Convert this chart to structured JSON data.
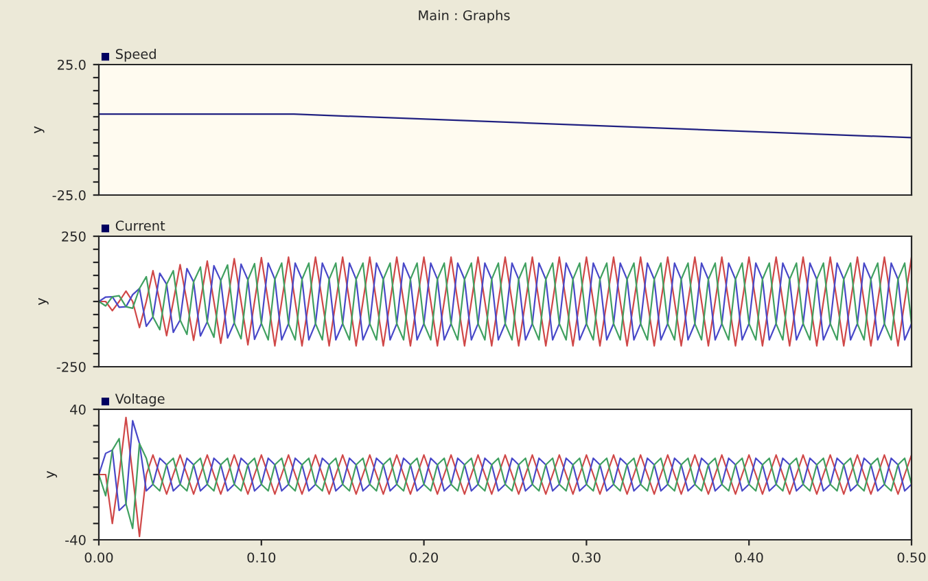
{
  "chart_data": [
    {
      "type": "line",
      "annotations": [
        "Main : Graphs"
      ],
      "title": "Speed",
      "ylabel": "y",
      "xlim": [
        0,
        0.5
      ],
      "ylim": [
        -25,
        25
      ],
      "yticks": [
        {
          "value": -25,
          "label": "-25.0"
        },
        {
          "value": -20,
          "label": null
        },
        {
          "value": -15,
          "label": null
        },
        {
          "value": -10,
          "label": null
        },
        {
          "value": -5,
          "label": null
        },
        {
          "value": 0,
          "label": null
        },
        {
          "value": 5,
          "label": null
        },
        {
          "value": 10,
          "label": null
        },
        {
          "value": 15,
          "label": null
        },
        {
          "value": 20,
          "label": null
        },
        {
          "value": 25,
          "label": "25.0"
        }
      ],
      "tick_labels": "y",
      "x": [
        0,
        0.12,
        0.5
      ],
      "series": [
        {
          "color": "#202080",
          "values": [
            6,
            6,
            -3
          ]
        }
      ]
    },
    {
      "type": "line",
      "title": "Current",
      "ylabel": "y",
      "xlim": [
        0,
        0.5
      ],
      "ylim": [
        -250,
        250
      ],
      "yticks": [
        -250,
        {
          "value": -200,
          "label": null
        },
        {
          "value": -150,
          "label": null
        },
        {
          "value": -100,
          "label": null
        },
        {
          "value": -50,
          "label": null
        },
        {
          "value": 0,
          "label": null
        },
        {
          "value": 50,
          "label": null
        },
        {
          "value": 100,
          "label": null
        },
        {
          "value": 150,
          "label": null
        },
        {
          "value": 200,
          "label": null
        },
        250
      ],
      "tick_labels": "y",
      "x": [
        0,
        0.0042,
        0.0083,
        0.0125,
        0.0167,
        0.0208,
        0.025,
        0.0292,
        0.0333,
        0.0375,
        0.0417,
        0.0458,
        0.05,
        0.0542,
        0.0583,
        0.0625,
        0.0667,
        0.0708,
        0.075,
        0.0792,
        0.0833,
        0.0875,
        0.0917,
        0.0958,
        0.1,
        0.1042,
        0.1083,
        0.1125,
        0.1167,
        0.1208,
        0.125,
        0.1292,
        0.1333,
        0.1375,
        0.1417,
        0.1458,
        0.15,
        0.1542,
        0.1583,
        0.1625,
        0.1667,
        0.1708,
        0.175,
        0.1792,
        0.1833,
        0.1875,
        0.1917,
        0.1958,
        0.2,
        0.2042,
        0.2083,
        0.2125,
        0.2167,
        0.2208,
        0.225,
        0.2292,
        0.2333,
        0.2375,
        0.2417,
        0.2458,
        0.25,
        0.2542,
        0.2583,
        0.2625,
        0.2667,
        0.2708,
        0.275,
        0.2792,
        0.2833,
        0.2875,
        0.2917,
        0.2958,
        0.3,
        0.3042,
        0.3083,
        0.3125,
        0.3167,
        0.3208,
        0.325,
        0.3292,
        0.3333,
        0.3375,
        0.3417,
        0.3458,
        0.35,
        0.3542,
        0.3583,
        0.3625,
        0.3667,
        0.3708,
        0.375,
        0.3792,
        0.3833,
        0.3875,
        0.3917,
        0.3958,
        0.4,
        0.4042,
        0.4083,
        0.4125,
        0.4167,
        0.4208,
        0.425,
        0.4292,
        0.4333,
        0.4375,
        0.4417,
        0.4458,
        0.45,
        0.4542,
        0.4583,
        0.4625,
        0.4667,
        0.4708,
        0.475,
        0.4792,
        0.4833,
        0.4875,
        0.4917,
        0.4958,
        0.5
      ],
      "series": [
        {
          "color": "#d04848",
          "values": [
            0,
            0,
            -35,
            0,
            40,
            0,
            -100,
            0,
            118,
            0,
            -131,
            0,
            141,
            0,
            -149,
            0,
            155,
            0,
            -160,
            0,
            164,
            0,
            -166,
            0,
            168,
            0,
            -170,
            0,
            170,
            0,
            -170,
            0,
            170,
            0,
            -170,
            0,
            170,
            0,
            -170,
            0,
            170,
            0,
            -170,
            0,
            170,
            0,
            -170,
            0,
            170,
            0,
            -170,
            0,
            170,
            0,
            -170,
            0,
            170,
            0,
            -170,
            0,
            170,
            0,
            -170,
            0,
            170,
            0,
            -170,
            0,
            170,
            0,
            -170,
            0,
            170,
            0,
            -170,
            0,
            170,
            0,
            -170,
            0,
            170,
            0,
            -170,
            0,
            170,
            0,
            -170,
            0,
            170,
            0,
            -170,
            0,
            170,
            0,
            -170,
            0,
            170,
            0,
            -170,
            0,
            170,
            0,
            -170,
            0,
            170,
            0,
            -170,
            0,
            170,
            0,
            -170,
            0,
            170,
            0,
            -170,
            0,
            170,
            0,
            -170,
            0,
            170
          ]
        },
        {
          "color": "#4848c8",
          "values": [
            0,
            17,
            18,
            -22,
            -20,
            26,
            50,
            -95,
            -59,
            108,
            66,
            -118,
            -71,
            126,
            75,
            -132,
            -78,
            137,
            80,
            -140,
            -82,
            143,
            83,
            -145,
            -84,
            147,
            85,
            -147,
            -85,
            147,
            85,
            -147,
            -85,
            147,
            85,
            -147,
            -85,
            147,
            85,
            -147,
            -85,
            147,
            85,
            -147,
            -85,
            147,
            85,
            -147,
            -85,
            147,
            85,
            -147,
            -85,
            147,
            85,
            -147,
            -85,
            147,
            85,
            -147,
            -85,
            147,
            85,
            -147,
            -85,
            147,
            85,
            -147,
            -85,
            147,
            85,
            -147,
            -85,
            147,
            85,
            -147,
            -85,
            147,
            85,
            -147,
            -85,
            147,
            85,
            -147,
            -85,
            147,
            85,
            -147,
            -85,
            147,
            85,
            -147,
            -85,
            147,
            85,
            -147,
            -85,
            147,
            85,
            -147,
            -85,
            147,
            85,
            -147,
            -85,
            147,
            85,
            -147,
            -85,
            147,
            85,
            -147,
            -85,
            147,
            85,
            -147,
            -85,
            147,
            85,
            -147,
            -85
          ]
        },
        {
          "color": "#40a060",
          "values": [
            0,
            -17,
            18,
            22,
            -20,
            -26,
            50,
            95,
            -59,
            -108,
            66,
            118,
            -71,
            -126,
            75,
            132,
            -78,
            -137,
            80,
            140,
            -82,
            -143,
            83,
            145,
            -84,
            -147,
            85,
            147,
            -85,
            -147,
            85,
            147,
            -85,
            -147,
            85,
            147,
            -85,
            -147,
            85,
            147,
            -85,
            -147,
            85,
            147,
            -85,
            -147,
            85,
            147,
            -85,
            -147,
            85,
            147,
            -85,
            -147,
            85,
            147,
            -85,
            -147,
            85,
            147,
            -85,
            -147,
            85,
            147,
            -85,
            -147,
            85,
            147,
            -85,
            -147,
            85,
            147,
            -85,
            -147,
            85,
            147,
            -85,
            -147,
            85,
            147,
            -85,
            -147,
            85,
            147,
            -85,
            -147,
            85,
            147,
            -85,
            -147,
            85,
            147,
            -85,
            -147,
            85,
            147,
            -85,
            -147,
            85,
            147,
            -85,
            -147,
            85,
            147,
            -85,
            -147,
            85,
            147,
            -85,
            -147,
            85,
            147,
            -85,
            -147,
            85,
            147,
            -85,
            -147,
            85,
            147,
            -85
          ]
        }
      ]
    },
    {
      "type": "line",
      "title": "Voltage",
      "ylabel": "y",
      "xlim": [
        0,
        0.5
      ],
      "xticks": [
        {
          "value": 0,
          "label": "0.00"
        },
        {
          "value": 0.1,
          "label": "0.10"
        },
        {
          "value": 0.2,
          "label": "0.20"
        },
        {
          "value": 0.3,
          "label": "0.30"
        },
        {
          "value": 0.4,
          "label": "0.40"
        },
        {
          "value": 0.5,
          "label": "0.50"
        }
      ],
      "ylim": [
        -40,
        40
      ],
      "yticks": [
        -40,
        {
          "value": -30,
          "label": null
        },
        {
          "value": -20,
          "label": null
        },
        {
          "value": -10,
          "label": null
        },
        {
          "value": 0,
          "label": null
        },
        {
          "value": 10,
          "label": null
        },
        {
          "value": 20,
          "label": null
        },
        {
          "value": 30,
          "label": null
        },
        40
      ],
      "x": [
        0,
        0.0042,
        0.0083,
        0.0125,
        0.0167,
        0.0208,
        0.025,
        0.0292,
        0.0333,
        0.0375,
        0.0417,
        0.0458,
        0.05,
        0.0542,
        0.0583,
        0.0625,
        0.0667,
        0.0708,
        0.075,
        0.0792,
        0.0833,
        0.0875,
        0.0917,
        0.0958,
        0.1,
        0.1042,
        0.1083,
        0.1125,
        0.1167,
        0.1208,
        0.125,
        0.1292,
        0.1333,
        0.1375,
        0.1417,
        0.1458,
        0.15,
        0.1542,
        0.1583,
        0.1625,
        0.1667,
        0.1708,
        0.175,
        0.1792,
        0.1833,
        0.1875,
        0.1917,
        0.1958,
        0.2,
        0.2042,
        0.2083,
        0.2125,
        0.2167,
        0.2208,
        0.225,
        0.2292,
        0.2333,
        0.2375,
        0.2417,
        0.2458,
        0.25,
        0.2542,
        0.2583,
        0.2625,
        0.2667,
        0.2708,
        0.275,
        0.2792,
        0.2833,
        0.2875,
        0.2917,
        0.2958,
        0.3,
        0.3042,
        0.3083,
        0.3125,
        0.3167,
        0.3208,
        0.325,
        0.3292,
        0.3333,
        0.3375,
        0.3417,
        0.3458,
        0.35,
        0.3542,
        0.3583,
        0.3625,
        0.3667,
        0.3708,
        0.375,
        0.3792,
        0.3833,
        0.3875,
        0.3917,
        0.3958,
        0.4,
        0.4042,
        0.4083,
        0.4125,
        0.4167,
        0.4208,
        0.425,
        0.4292,
        0.4333,
        0.4375,
        0.4417,
        0.4458,
        0.45,
        0.4542,
        0.4583,
        0.4625,
        0.4667,
        0.4708,
        0.475,
        0.4792,
        0.4833,
        0.4875,
        0.4917,
        0.4958,
        0.5
      ],
      "series": [
        {
          "color": "#d04848",
          "values": [
            0,
            0,
            -30,
            0,
            35,
            0,
            -38,
            0,
            12,
            0,
            -12,
            0,
            12,
            0,
            -12,
            0,
            12,
            0,
            -12,
            0,
            12,
            0,
            -12,
            0,
            12,
            0,
            -12,
            0,
            12,
            0,
            -12,
            0,
            12,
            0,
            -12,
            0,
            12,
            0,
            -12,
            0,
            12,
            0,
            -12,
            0,
            12,
            0,
            -12,
            0,
            12,
            0,
            -12,
            0,
            12,
            0,
            -12,
            0,
            12,
            0,
            -12,
            0,
            12,
            0,
            -12,
            0,
            12,
            0,
            -12,
            0,
            12,
            0,
            -12,
            0,
            12,
            0,
            -12,
            0,
            12,
            0,
            -12,
            0,
            12,
            0,
            -12,
            0,
            12,
            0,
            -12,
            0,
            12,
            0,
            -12,
            0,
            12,
            0,
            -12,
            0,
            12,
            0,
            -12,
            0,
            12,
            0,
            -12,
            0,
            12,
            0,
            -12,
            0,
            12,
            0,
            -12,
            0,
            12,
            0,
            -12,
            0,
            12,
            0,
            -12,
            0,
            12
          ]
        },
        {
          "color": "#4848c8",
          "values": [
            0,
            13,
            15,
            -22,
            -18,
            33,
            19,
            -10,
            -6,
            10,
            6,
            -10,
            -6,
            10,
            6,
            -10,
            -6,
            10,
            6,
            -10,
            -6,
            10,
            6,
            -10,
            -6,
            10,
            6,
            -10,
            -6,
            10,
            6,
            -10,
            -6,
            10,
            6,
            -10,
            -6,
            10,
            6,
            -10,
            -6,
            10,
            6,
            -10,
            -6,
            10,
            6,
            -10,
            -6,
            10,
            6,
            -10,
            -6,
            10,
            6,
            -10,
            -6,
            10,
            6,
            -10,
            -6,
            10,
            6,
            -10,
            -6,
            10,
            6,
            -10,
            -6,
            10,
            6,
            -10,
            -6,
            10,
            6,
            -10,
            -6,
            10,
            6,
            -10,
            -6,
            10,
            6,
            -10,
            -6,
            10,
            6,
            -10,
            -6,
            10,
            6,
            -10,
            -6,
            10,
            6,
            -10,
            -6,
            10,
            6,
            -10,
            -6,
            10,
            6,
            -10,
            -6,
            10,
            6,
            -10,
            -6,
            10,
            6,
            -10,
            -6,
            10,
            6,
            -10,
            -6,
            10,
            6,
            -10,
            -6
          ]
        },
        {
          "color": "#40a060",
          "values": [
            0,
            -13,
            15,
            22,
            -18,
            -33,
            19,
            10,
            -6,
            -10,
            6,
            10,
            -6,
            -10,
            6,
            10,
            -6,
            -10,
            6,
            10,
            -6,
            -10,
            6,
            10,
            -6,
            -10,
            6,
            10,
            -6,
            -10,
            6,
            10,
            -6,
            -10,
            6,
            10,
            -6,
            -10,
            6,
            10,
            -6,
            -10,
            6,
            10,
            -6,
            -10,
            6,
            10,
            -6,
            -10,
            6,
            10,
            -6,
            -10,
            6,
            10,
            -6,
            -10,
            6,
            10,
            -6,
            -10,
            6,
            10,
            -6,
            -10,
            6,
            10,
            -6,
            -10,
            6,
            10,
            -6,
            -10,
            6,
            10,
            -6,
            -10,
            6,
            10,
            -6,
            -10,
            6,
            10,
            -6,
            -10,
            6,
            10,
            -6,
            -10,
            6,
            10,
            -6,
            -10,
            6,
            10,
            -6,
            -10,
            6,
            10,
            -6,
            -10,
            6,
            10,
            -6,
            -10,
            6,
            10,
            -6,
            -10,
            6,
            10,
            -6,
            -10,
            6,
            10,
            -6,
            -10,
            6,
            10,
            -6
          ]
        }
      ]
    }
  ]
}
